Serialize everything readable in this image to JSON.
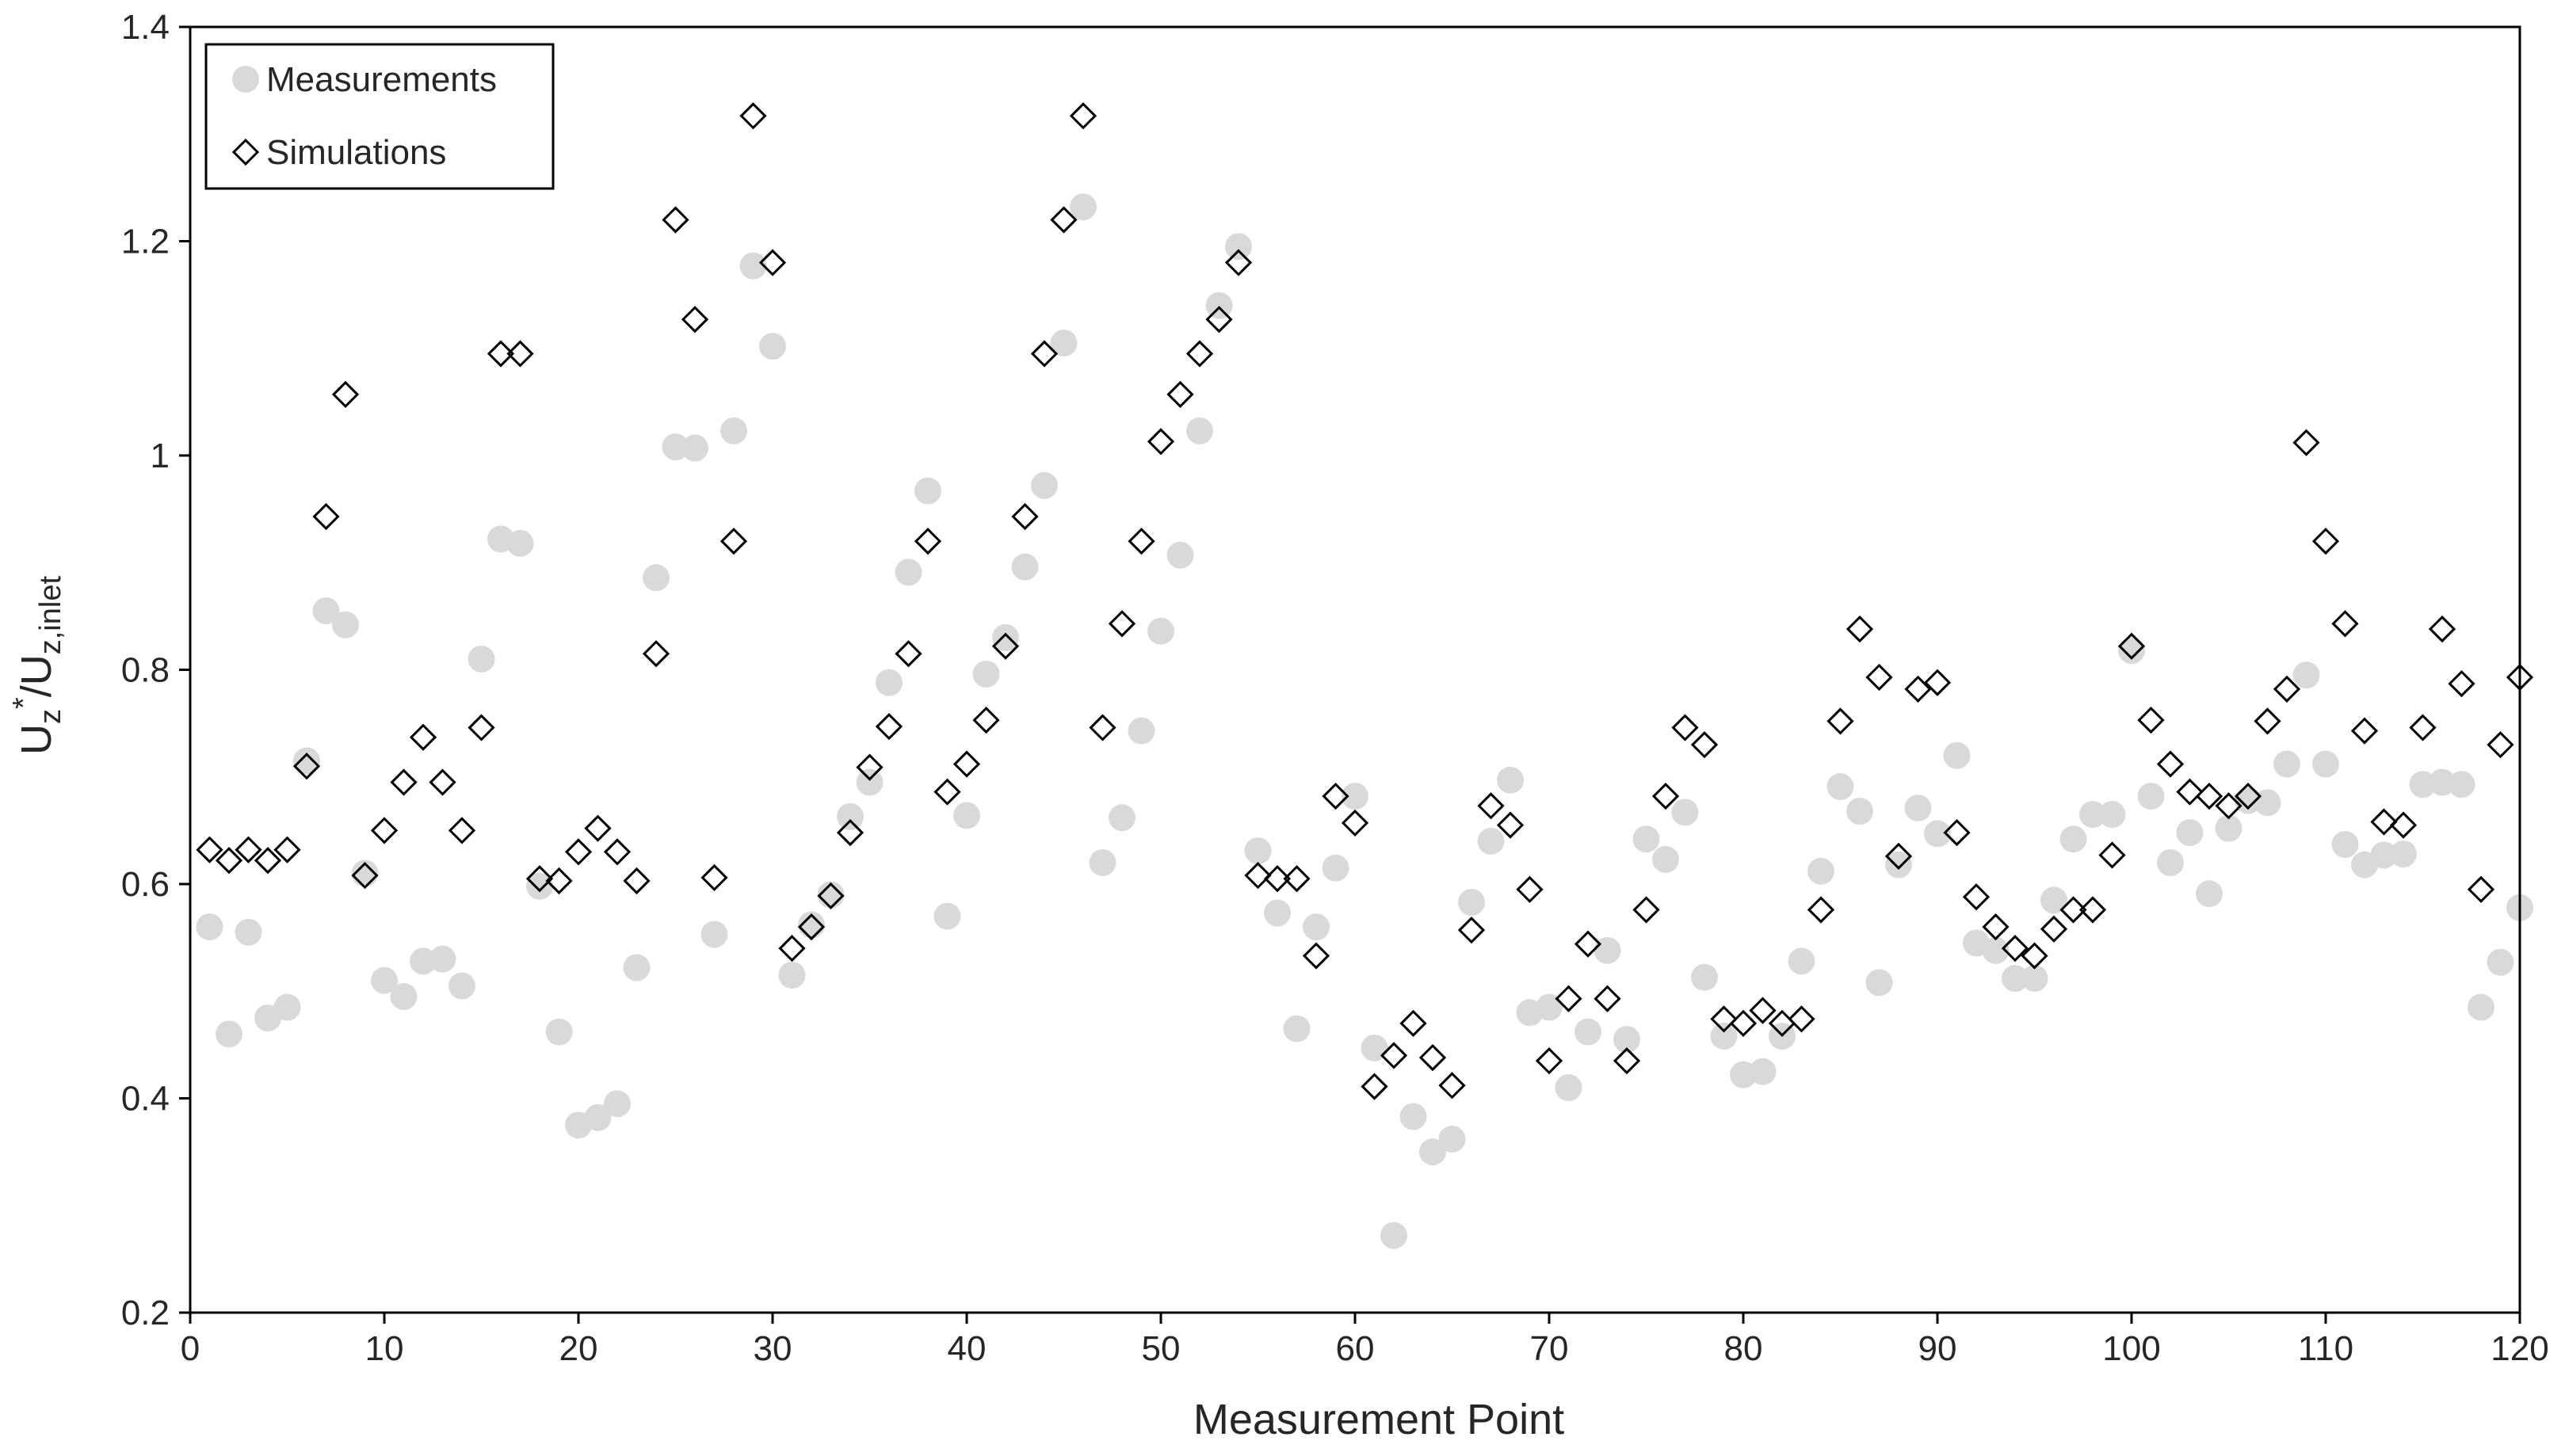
{
  "chart_data": {
    "type": "scatter",
    "xlabel": "Measurement Point",
    "ylabel": {
      "main": "U",
      "sub1": "z",
      "sup": "*",
      "slash": "/U",
      "sub2": "z,inlet"
    },
    "xlim": [
      0,
      120
    ],
    "ylim": [
      0.2,
      1.4
    ],
    "xticks": [
      "0",
      "10",
      "20",
      "30",
      "40",
      "50",
      "60",
      "70",
      "80",
      "90",
      "100",
      "110",
      "120"
    ],
    "yticks": [
      "0.2",
      "0.4",
      "0.6",
      "0.8",
      "1",
      "1.2",
      "1.4"
    ],
    "grid": false,
    "legend_position": "top-left",
    "colors": {
      "measurements": "#d9d9d9",
      "simulations_stroke": "#000000",
      "axis": "#000000"
    },
    "series": [
      {
        "name": "Measurements",
        "marker": "circle",
        "x": [
          1,
          2,
          3,
          4,
          5,
          6,
          7,
          8,
          9,
          10,
          11,
          12,
          13,
          14,
          15,
          16,
          17,
          18,
          19,
          20,
          21,
          22,
          23,
          24,
          25,
          26,
          27,
          28,
          29,
          30,
          31,
          32,
          33,
          34,
          35,
          36,
          37,
          38,
          39,
          40,
          41,
          42,
          43,
          44,
          45,
          46,
          47,
          48,
          49,
          50,
          51,
          52,
          53,
          54,
          55,
          56,
          57,
          58,
          59,
          60,
          61,
          62,
          63,
          64,
          65,
          66,
          67,
          68,
          69,
          70,
          71,
          72,
          73,
          74,
          75,
          76,
          77,
          78,
          79,
          80,
          81,
          82,
          83,
          84,
          85,
          86,
          87,
          88,
          89,
          90,
          91,
          92,
          93,
          94,
          95,
          96,
          97,
          98,
          99,
          100,
          101,
          102,
          103,
          104,
          105,
          106,
          107,
          108,
          109,
          110,
          111,
          112,
          113,
          114,
          115,
          116,
          117,
          118,
          119,
          120
        ],
        "y": [
          0.56,
          0.46,
          0.555,
          0.475,
          0.485,
          0.715,
          0.855,
          0.842,
          0.61,
          0.51,
          0.495,
          0.528,
          0.53,
          0.505,
          0.81,
          0.922,
          0.918,
          0.598,
          0.462,
          0.375,
          0.382,
          0.395,
          0.522,
          0.886,
          1.008,
          1.007,
          0.553,
          1.023,
          1.177,
          1.102,
          0.515,
          0.562,
          0.59,
          0.663,
          0.695,
          0.788,
          0.891,
          0.967,
          0.57,
          0.664,
          0.796,
          0.83,
          0.896,
          0.972,
          1.105,
          1.232,
          0.62,
          0.662,
          0.743,
          0.836,
          0.907,
          1.023,
          1.14,
          1.195,
          0.631,
          0.573,
          0.465,
          0.56,
          0.615,
          0.682,
          0.447,
          0.272,
          0.383,
          0.35,
          0.362,
          0.583,
          0.64,
          0.697,
          0.48,
          0.485,
          0.41,
          0.462,
          0.538,
          0.455,
          0.642,
          0.623,
          0.667,
          0.513,
          0.458,
          0.422,
          0.425,
          0.458,
          0.528,
          0.612,
          0.691,
          0.668,
          0.508,
          0.618,
          0.671,
          0.647,
          0.72,
          0.545,
          0.538,
          0.512,
          0.512,
          0.585,
          0.642,
          0.665,
          0.665,
          0.818,
          0.682,
          0.62,
          0.648,
          0.591,
          0.652,
          0.678,
          0.676,
          0.712,
          0.795,
          0.712,
          0.637,
          0.618,
          0.627,
          0.628,
          0.693,
          0.695,
          0.693,
          0.485,
          0.527,
          0.578
        ]
      },
      {
        "name": "Simulations",
        "marker": "diamond",
        "x": [
          1,
          2,
          3,
          4,
          5,
          6,
          7,
          8,
          9,
          10,
          11,
          12,
          13,
          14,
          15,
          16,
          17,
          18,
          19,
          20,
          21,
          22,
          23,
          24,
          25,
          26,
          27,
          28,
          29,
          30,
          31,
          32,
          33,
          34,
          35,
          36,
          37,
          38,
          39,
          40,
          41,
          42,
          43,
          44,
          45,
          46,
          47,
          48,
          49,
          50,
          51,
          52,
          53,
          54,
          55,
          56,
          57,
          58,
          59,
          60,
          61,
          62,
          63,
          64,
          65,
          66,
          67,
          68,
          69,
          70,
          71,
          72,
          73,
          74,
          75,
          76,
          77,
          78,
          79,
          80,
          81,
          82,
          83,
          84,
          85,
          86,
          87,
          88,
          89,
          90,
          91,
          92,
          93,
          94,
          95,
          96,
          97,
          98,
          99,
          100,
          101,
          102,
          103,
          104,
          105,
          106,
          107,
          108,
          109,
          110,
          111,
          112,
          113,
          114,
          115,
          116,
          117,
          118,
          119,
          120
        ],
        "y": [
          0.632,
          0.622,
          0.632,
          0.622,
          0.632,
          0.71,
          0.943,
          1.057,
          0.608,
          0.65,
          0.695,
          0.737,
          0.695,
          0.65,
          0.746,
          1.095,
          1.095,
          0.605,
          0.603,
          0.63,
          0.652,
          0.63,
          0.603,
          0.815,
          1.22,
          1.127,
          0.606,
          0.92,
          1.317,
          1.18,
          0.54,
          0.56,
          0.589,
          0.648,
          0.709,
          0.747,
          0.815,
          0.92,
          0.686,
          0.712,
          0.753,
          0.822,
          0.943,
          1.095,
          1.22,
          1.317,
          0.746,
          0.843,
          0.92,
          1.013,
          1.057,
          1.095,
          1.127,
          1.18,
          0.608,
          0.605,
          0.605,
          0.533,
          0.682,
          0.657,
          0.411,
          0.44,
          0.47,
          0.438,
          0.412,
          0.557,
          0.673,
          0.655,
          0.595,
          0.435,
          0.493,
          0.544,
          0.493,
          0.435,
          0.576,
          0.682,
          0.746,
          0.73,
          0.474,
          0.47,
          0.482,
          0.47,
          0.474,
          0.576,
          0.752,
          0.838,
          0.793,
          0.626,
          0.782,
          0.788,
          0.648,
          0.588,
          0.56,
          0.54,
          0.533,
          0.558,
          0.576,
          0.576,
          0.627,
          0.822,
          0.753,
          0.712,
          0.686,
          0.682,
          0.673,
          0.682,
          0.752,
          0.782,
          1.012,
          0.92,
          0.843,
          0.743,
          0.658,
          0.655,
          0.746,
          0.838,
          0.787,
          0.595,
          0.73,
          0.793
        ]
      }
    ]
  }
}
